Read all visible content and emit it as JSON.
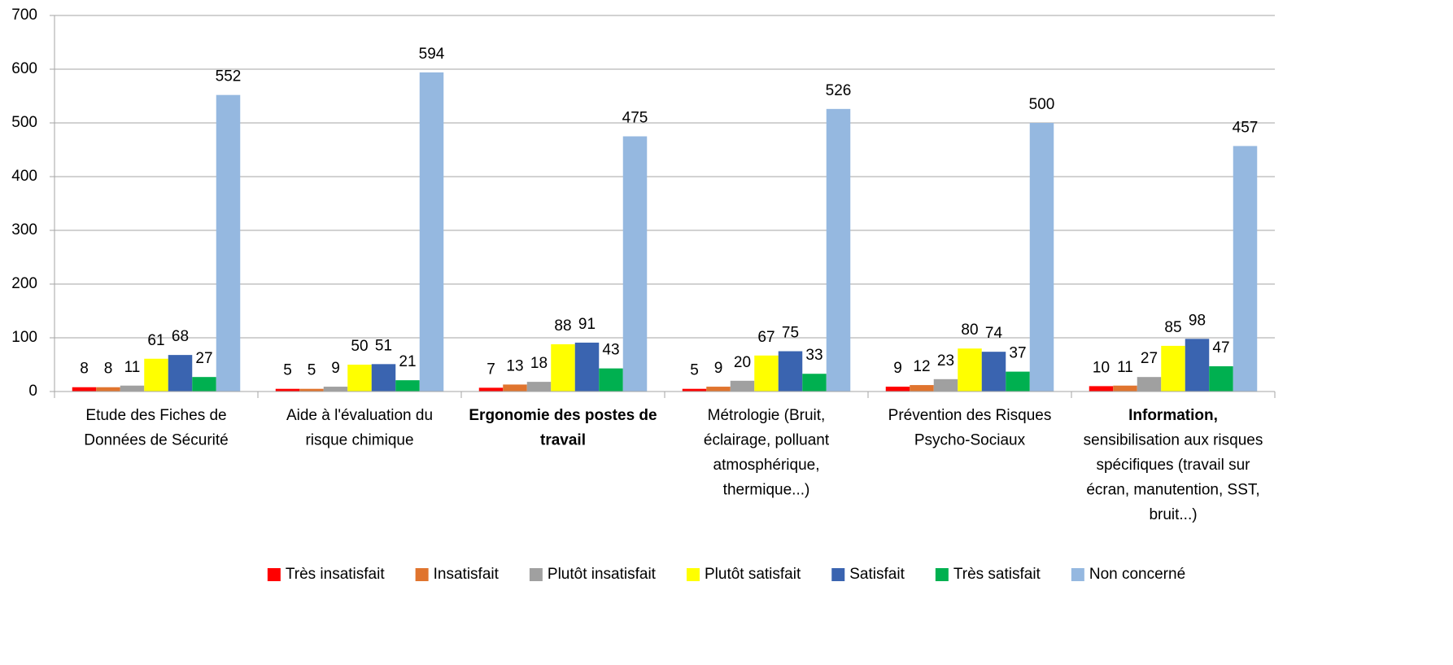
{
  "chart_data": {
    "type": "bar",
    "categories": [
      [
        "Etude des Fiches de",
        "Données de Sécurité"
      ],
      [
        "Aide à l'évaluation du",
        "risque chimique"
      ],
      [
        "Ergonomie des postes de",
        "travail"
      ],
      [
        "Métrologie (Bruit,",
        "éclairage, polluant",
        "atmosphérique,",
        "thermique...)"
      ],
      [
        "Prévention des Risques",
        "Psycho-Sociaux"
      ],
      [
        "Information,",
        "sensibilisation aux risques",
        "spécifiques (travail sur",
        "écran, manutention, SST,",
        "bruit...)"
      ]
    ],
    "category_bold_lines": [
      0,
      0,
      2,
      0,
      0,
      1
    ],
    "series": [
      {
        "name": "Très insatisfait",
        "color": "#ff0000",
        "values": [
          8,
          5,
          7,
          5,
          9,
          10
        ]
      },
      {
        "name": "Insatisfait",
        "color": "#e0742e",
        "values": [
          8,
          5,
          13,
          9,
          12,
          11
        ]
      },
      {
        "name": "Plutôt insatisfait",
        "color": "#a0a0a0",
        "values": [
          11,
          9,
          18,
          20,
          23,
          27
        ]
      },
      {
        "name": "Plutôt satisfait",
        "color": "#ffff00",
        "values": [
          61,
          50,
          88,
          67,
          80,
          85
        ]
      },
      {
        "name": "Satisfait",
        "color": "#3a64b0",
        "values": [
          68,
          51,
          91,
          75,
          74,
          98
        ]
      },
      {
        "name": "Très satisfait",
        "color": "#00b050",
        "values": [
          27,
          21,
          43,
          33,
          37,
          47
        ]
      },
      {
        "name": "Non concerné",
        "color": "#95b8e0",
        "values": [
          552,
          594,
          475,
          526,
          500,
          457
        ]
      }
    ],
    "ylim": [
      0,
      700
    ],
    "yticks": [
      0,
      100,
      200,
      300,
      400,
      500,
      600,
      700
    ],
    "grid": true,
    "legend": "bottom"
  }
}
